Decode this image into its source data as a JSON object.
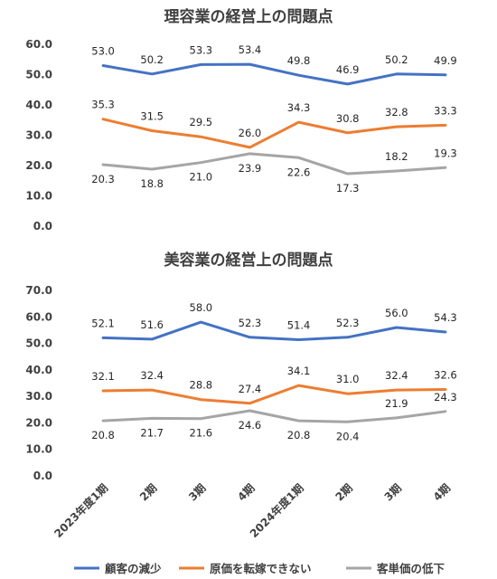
{
  "chart_data": [
    {
      "type": "line",
      "title": "理容業の経営上の問題点",
      "categories": [
        "2023年度1期",
        "2期",
        "3期",
        "4期",
        "2024年度1期",
        "2期",
        "3期",
        "4期"
      ],
      "ylim": [
        0,
        60
      ],
      "yticks": [
        "0.0",
        "10.0",
        "20.0",
        "30.0",
        "40.0",
        "50.0",
        "60.0"
      ],
      "show_x_labels": false,
      "series": [
        {
          "name": "顧客の減少",
          "color": "#4472C4",
          "values": [
            53.0,
            50.2,
            53.3,
            53.4,
            49.8,
            46.9,
            50.2,
            49.9
          ],
          "labels": [
            "53.0",
            "50.2",
            "53.3",
            "53.4",
            "49.8",
            "46.9",
            "50.2",
            "49.9"
          ],
          "label_pos": "above"
        },
        {
          "name": "原価を転嫁できない",
          "color": "#ED7D31",
          "values": [
            35.3,
            31.5,
            29.5,
            26.0,
            34.3,
            30.8,
            32.8,
            33.3
          ],
          "labels": [
            "35.3",
            "31.5",
            "29.5",
            "26.0",
            "34.3",
            "30.8",
            "32.8",
            "33.3"
          ],
          "label_pos": "above"
        },
        {
          "name": "客単価の低下",
          "color": "#A5A5A5",
          "values": [
            20.3,
            18.8,
            21.0,
            23.9,
            22.6,
            17.3,
            18.2,
            19.3
          ],
          "labels": [
            "20.3",
            "18.8",
            "21.0",
            "23.9",
            "22.6",
            "17.3",
            "18.2",
            "19.3"
          ],
          "label_pos": [
            "below",
            "below",
            "below",
            "below",
            "below",
            "below",
            "above",
            "above"
          ]
        }
      ]
    },
    {
      "type": "line",
      "title": "美容業の経営上の問題点",
      "categories": [
        "2023年度1期",
        "2期",
        "3期",
        "4期",
        "2024年度1期",
        "2期",
        "3期",
        "4期"
      ],
      "ylim": [
        0,
        70
      ],
      "yticks": [
        "0.0",
        "10.0",
        "20.0",
        "30.0",
        "40.0",
        "50.0",
        "60.0",
        "70.0"
      ],
      "show_x_labels": true,
      "series": [
        {
          "name": "顧客の減少",
          "color": "#4472C4",
          "values": [
            52.1,
            51.6,
            58.0,
            52.3,
            51.4,
            52.3,
            56.0,
            54.3
          ],
          "labels": [
            "52.1",
            "51.6",
            "58.0",
            "52.3",
            "51.4",
            "52.3",
            "56.0",
            "54.3"
          ],
          "label_pos": "above"
        },
        {
          "name": "原価を転嫁できない",
          "color": "#ED7D31",
          "values": [
            32.1,
            32.4,
            28.8,
            27.4,
            34.1,
            31.0,
            32.4,
            32.6
          ],
          "labels": [
            "32.1",
            "32.4",
            "28.8",
            "27.4",
            "34.1",
            "31.0",
            "32.4",
            "32.6"
          ],
          "label_pos": "above"
        },
        {
          "name": "客単価の低下",
          "color": "#A5A5A5",
          "values": [
            20.8,
            21.7,
            21.6,
            24.6,
            20.8,
            20.4,
            21.9,
            24.3
          ],
          "labels": [
            "20.8",
            "21.7",
            "21.6",
            "24.6",
            "20.8",
            "20.4",
            "21.9",
            "24.3"
          ],
          "label_pos": [
            "below",
            "below",
            "below",
            "below",
            "below",
            "below",
            "above",
            "above"
          ]
        }
      ]
    }
  ],
  "legend": [
    {
      "name": "顧客の減少",
      "color": "#4472C4"
    },
    {
      "name": "原価を転嫁できない",
      "color": "#ED7D31"
    },
    {
      "name": "客単価の低下",
      "color": "#A5A5A5"
    }
  ]
}
